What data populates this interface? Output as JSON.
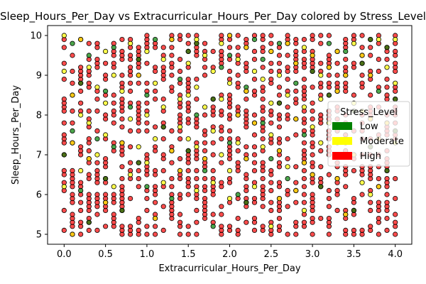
{
  "chart_data": {
    "type": "scatter",
    "title": "Sleep_Hours_Per_Day vs Extracurricular_Hours_Per_Day colored by Stress_Level",
    "xlabel": "Extracurricular_Hours_Per_Day",
    "ylabel": "Sleep_Hours_Per_Day",
    "xlim": [
      -0.2,
      4.2
    ],
    "ylim": [
      4.75,
      10.25
    ],
    "xticks": [
      "0.0",
      "0.5",
      "1.0",
      "1.5",
      "2.0",
      "2.5",
      "3.0",
      "3.5",
      "4.0"
    ],
    "yticks": [
      "5",
      "6",
      "7",
      "8",
      "9",
      "10"
    ],
    "grid": false,
    "legend": {
      "title": "Stress_Level",
      "placement": "center-right",
      "entries": [
        {
          "label": "Low",
          "color": "#008000"
        },
        {
          "label": "Moderate",
          "color": "#ffff00"
        },
        {
          "label": "High",
          "color": "#ff0000"
        }
      ]
    },
    "series": [
      {
        "name": "Low",
        "color": "#008000",
        "points": [
          [
            0.0,
            7.0
          ],
          [
            0.1,
            9.8
          ],
          [
            0.1,
            7.6
          ],
          [
            0.2,
            8.8
          ],
          [
            0.2,
            6.1
          ],
          [
            0.3,
            9.5
          ],
          [
            0.4,
            7.4
          ],
          [
            0.5,
            8.6
          ],
          [
            0.5,
            6.4
          ],
          [
            0.6,
            9.7
          ],
          [
            0.6,
            7.2
          ],
          [
            0.7,
            5.6
          ],
          [
            0.8,
            8.2
          ],
          [
            0.9,
            9.4
          ],
          [
            0.9,
            6.8
          ],
          [
            1.0,
            8.5
          ],
          [
            1.0,
            6.2
          ],
          [
            1.1,
            9.9
          ],
          [
            1.2,
            7.7
          ],
          [
            1.3,
            5.9
          ],
          [
            1.4,
            8.9
          ],
          [
            1.5,
            7.1
          ],
          [
            1.5,
            9.6
          ],
          [
            1.6,
            8.0
          ],
          [
            1.6,
            9.8
          ],
          [
            1.7,
            6.6
          ],
          [
            1.8,
            8.4
          ],
          [
            1.9,
            9.2
          ],
          [
            2.0,
            7.3
          ],
          [
            2.0,
            9.5
          ],
          [
            2.1,
            6.0
          ],
          [
            2.2,
            8.7
          ],
          [
            2.3,
            9.9
          ],
          [
            2.4,
            7.8
          ],
          [
            2.4,
            9.4
          ],
          [
            2.5,
            6.9
          ],
          [
            2.6,
            8.3
          ],
          [
            2.6,
            9.8
          ],
          [
            2.7,
            6.4
          ],
          [
            2.8,
            8.8
          ],
          [
            2.9,
            7.5
          ],
          [
            3.0,
            9.1
          ],
          [
            3.1,
            6.2
          ],
          [
            3.2,
            9.8
          ],
          [
            3.2,
            8.5
          ],
          [
            3.3,
            7.0
          ],
          [
            3.4,
            9.6
          ],
          [
            3.5,
            8.1
          ],
          [
            3.5,
            5.6
          ],
          [
            3.6,
            9.3
          ],
          [
            3.7,
            7.2
          ],
          [
            3.7,
            9.9
          ],
          [
            3.8,
            8.6
          ],
          [
            3.9,
            6.6
          ],
          [
            3.9,
            9.7
          ],
          [
            4.0,
            8.4
          ],
          [
            4.0,
            7.6
          ],
          [
            0.3,
            5.3
          ],
          [
            1.8,
            5.2
          ],
          [
            2.2,
            5.8
          ]
        ]
      },
      {
        "name": "Moderate",
        "color": "#ffff00",
        "points": [
          [
            0.0,
            10.0
          ],
          [
            0.0,
            9.1
          ],
          [
            0.0,
            6.2
          ],
          [
            0.1,
            8.5
          ],
          [
            0.1,
            7.3
          ],
          [
            0.2,
            9.9
          ],
          [
            0.2,
            8.0
          ],
          [
            0.2,
            6.6
          ],
          [
            0.3,
            9.2
          ],
          [
            0.3,
            7.8
          ],
          [
            0.3,
            6.9
          ],
          [
            0.4,
            8.7
          ],
          [
            0.4,
            7.0
          ],
          [
            0.5,
            9.6
          ],
          [
            0.5,
            8.3
          ],
          [
            0.5,
            7.5
          ],
          [
            0.6,
            9.0
          ],
          [
            0.6,
            6.2
          ],
          [
            0.7,
            8.6
          ],
          [
            0.7,
            7.3
          ],
          [
            0.8,
            9.8
          ],
          [
            0.8,
            7.9
          ],
          [
            0.8,
            6.5
          ],
          [
            0.9,
            9.0
          ],
          [
            0.9,
            7.2
          ],
          [
            1.0,
            9.6
          ],
          [
            1.0,
            8.0
          ],
          [
            1.0,
            6.8
          ],
          [
            1.1,
            8.8
          ],
          [
            1.1,
            7.4
          ],
          [
            1.2,
            9.4
          ],
          [
            1.2,
            8.2
          ],
          [
            1.2,
            6.3
          ],
          [
            1.3,
            9.9
          ],
          [
            1.3,
            7.1
          ],
          [
            1.4,
            8.4
          ],
          [
            1.4,
            7.7
          ],
          [
            1.4,
            6.6
          ],
          [
            1.5,
            9.3
          ],
          [
            1.5,
            8.5
          ],
          [
            1.5,
            7.4
          ],
          [
            1.6,
            9.9
          ],
          [
            1.6,
            8.7
          ],
          [
            1.6,
            7.2
          ],
          [
            1.7,
            9.5
          ],
          [
            1.7,
            8.2
          ],
          [
            1.7,
            6.9
          ],
          [
            1.8,
            9.1
          ],
          [
            1.8,
            7.6
          ],
          [
            1.8,
            6.3
          ],
          [
            1.9,
            9.8
          ],
          [
            1.9,
            8.4
          ],
          [
            1.9,
            7.0
          ],
          [
            2.0,
            10.0
          ],
          [
            2.0,
            8.8
          ],
          [
            2.0,
            6.6
          ],
          [
            2.1,
            9.4
          ],
          [
            2.1,
            8.0
          ],
          [
            2.1,
            7.3
          ],
          [
            2.2,
            9.7
          ],
          [
            2.2,
            8.6
          ],
          [
            2.2,
            6.9
          ],
          [
            2.3,
            9.1
          ],
          [
            2.3,
            7.8
          ],
          [
            2.3,
            6.2
          ],
          [
            2.4,
            8.9
          ],
          [
            2.4,
            7.2
          ],
          [
            2.5,
            9.6
          ],
          [
            2.5,
            8.3
          ],
          [
            2.5,
            7.5
          ],
          [
            2.6,
            9.0
          ],
          [
            2.6,
            7.1
          ],
          [
            2.6,
            5.9
          ],
          [
            2.7,
            9.8
          ],
          [
            2.7,
            8.5
          ],
          [
            2.7,
            6.7
          ],
          [
            2.8,
            9.3
          ],
          [
            2.8,
            7.9
          ],
          [
            2.8,
            6.1
          ],
          [
            2.9,
            9.7
          ],
          [
            2.9,
            8.2
          ],
          [
            2.9,
            6.8
          ],
          [
            3.0,
            9.5
          ],
          [
            3.0,
            7.7
          ],
          [
            3.0,
            6.5
          ],
          [
            3.1,
            9.0
          ],
          [
            3.1,
            8.4
          ],
          [
            3.1,
            7.3
          ],
          [
            3.2,
            9.2
          ],
          [
            3.2,
            7.8
          ],
          [
            3.3,
            9.6
          ],
          [
            3.3,
            8.6
          ],
          [
            3.3,
            6.4
          ],
          [
            3.4,
            9.0
          ],
          [
            3.4,
            7.7
          ],
          [
            3.5,
            9.8
          ],
          [
            3.5,
            8.3
          ],
          [
            3.5,
            7.0
          ],
          [
            3.6,
            9.5
          ],
          [
            3.6,
            8.1
          ],
          [
            3.6,
            6.3
          ],
          [
            3.7,
            9.0
          ],
          [
            3.7,
            7.9
          ],
          [
            3.8,
            9.9
          ],
          [
            3.8,
            7.4
          ],
          [
            3.8,
            6.2
          ],
          [
            3.9,
            9.2
          ],
          [
            3.9,
            7.8
          ],
          [
            4.0,
            9.9
          ],
          [
            4.0,
            8.8
          ],
          [
            4.0,
            7.3
          ],
          [
            0.1,
            5.0
          ],
          [
            1.1,
            5.4
          ],
          [
            2.0,
            5.9
          ],
          [
            2.9,
            5.6
          ],
          [
            3.7,
            6.0
          ],
          [
            0.5,
            5.8
          ],
          [
            1.6,
            6.1
          ],
          [
            2.5,
            5.2
          ],
          [
            3.4,
            5.5
          ]
        ]
      },
      {
        "name": "High",
        "color": "#ff0000",
        "points": []
      }
    ]
  }
}
